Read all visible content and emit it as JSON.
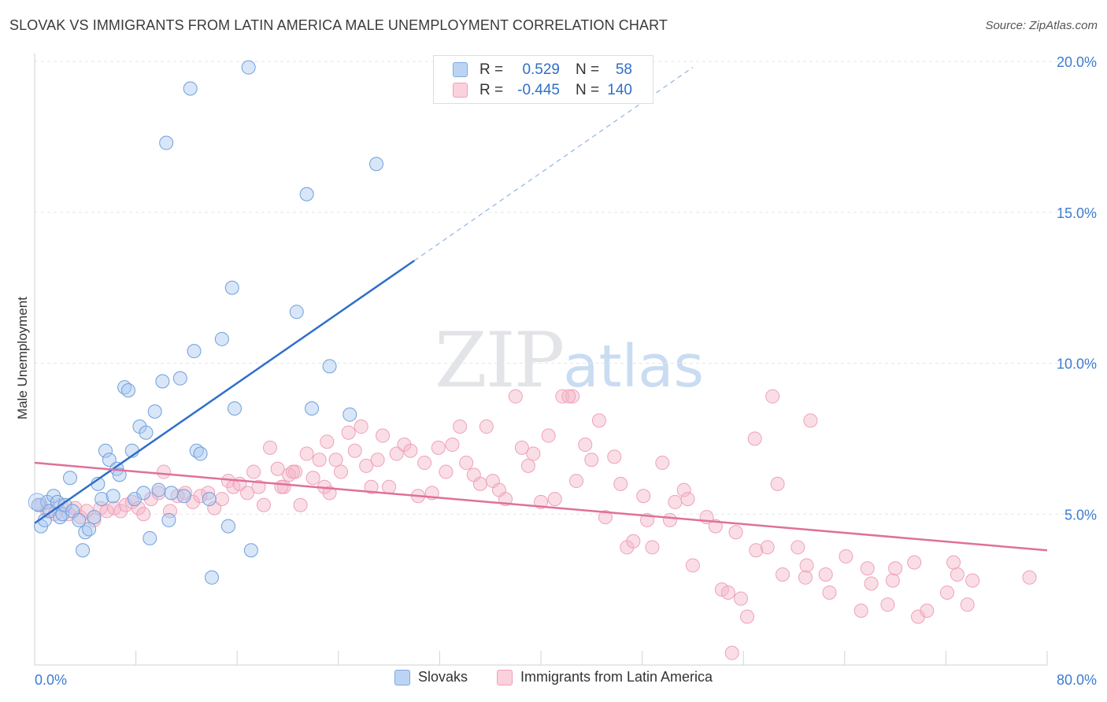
{
  "title": "SLOVAK VS IMMIGRANTS FROM LATIN AMERICA MALE UNEMPLOYMENT CORRELATION CHART",
  "source": "Source: ZipAtlas.com",
  "watermark": {
    "zip": "ZIP",
    "atlas": "atlas"
  },
  "colors": {
    "blue": "#a9c8f0",
    "blue_line": "#2f6fc9",
    "pink": "#f5b5c8",
    "pink_line": "#e0709a",
    "axis_label": "#3d7bd1"
  },
  "stats": [
    {
      "r_label": "R =",
      "r_value": "0.529",
      "n_label": "N =",
      "n_value": "58"
    },
    {
      "r_label": "R =",
      "r_value": "-0.445",
      "n_label": "N =",
      "n_value": "140"
    }
  ],
  "legend": [
    "Slovaks",
    "Immigrants from Latin America"
  ],
  "chart_data": {
    "type": "scatter",
    "ylabel": "Male Unemployment",
    "xlim": [
      0,
      80
    ],
    "ylim": [
      0,
      20
    ],
    "x_tick_labels": [
      "0.0%",
      "80.0%"
    ],
    "y_ticks": [
      5,
      10,
      15,
      20
    ],
    "y_tick_labels": [
      "5.0%",
      "10.0%",
      "15.0%",
      "20.0%"
    ],
    "grid": true,
    "series": [
      {
        "name": "Slovaks",
        "trend": {
          "x0": 0,
          "y0": 4.7,
          "x1": 30,
          "y1": 13.4,
          "dash_to_x": 52,
          "dash_to_y": 19.8
        },
        "points": [
          [
            0.3,
            5.3
          ],
          [
            0.5,
            4.6
          ],
          [
            0.8,
            4.8
          ],
          [
            1.0,
            5.4
          ],
          [
            1.2,
            5.1
          ],
          [
            1.5,
            5.6
          ],
          [
            1.8,
            5.4
          ],
          [
            2.0,
            4.9
          ],
          [
            2.2,
            5.0
          ],
          [
            2.4,
            5.3
          ],
          [
            2.8,
            6.2
          ],
          [
            3.0,
            5.1
          ],
          [
            3.5,
            4.8
          ],
          [
            3.8,
            3.8
          ],
          [
            4.0,
            4.4
          ],
          [
            4.3,
            4.5
          ],
          [
            4.7,
            4.9
          ],
          [
            5.0,
            6.0
          ],
          [
            5.3,
            5.5
          ],
          [
            5.6,
            7.1
          ],
          [
            5.9,
            6.8
          ],
          [
            6.2,
            5.6
          ],
          [
            6.5,
            6.5
          ],
          [
            6.7,
            6.3
          ],
          [
            7.1,
            9.2
          ],
          [
            7.4,
            9.1
          ],
          [
            7.7,
            7.1
          ],
          [
            7.9,
            5.5
          ],
          [
            8.3,
            7.9
          ],
          [
            8.6,
            5.7
          ],
          [
            8.8,
            7.7
          ],
          [
            9.1,
            4.2
          ],
          [
            9.5,
            8.4
          ],
          [
            9.8,
            5.8
          ],
          [
            10.1,
            9.4
          ],
          [
            10.4,
            17.3
          ],
          [
            10.8,
            5.7
          ],
          [
            10.6,
            4.8
          ],
          [
            11.5,
            9.5
          ],
          [
            11.8,
            5.6
          ],
          [
            12.3,
            19.1
          ],
          [
            12.6,
            10.4
          ],
          [
            12.8,
            7.1
          ],
          [
            13.1,
            7.0
          ],
          [
            13.8,
            5.5
          ],
          [
            14.0,
            2.9
          ],
          [
            14.8,
            10.8
          ],
          [
            15.3,
            4.6
          ],
          [
            15.6,
            12.5
          ],
          [
            15.8,
            8.5
          ],
          [
            16.9,
            19.8
          ],
          [
            17.1,
            3.8
          ],
          [
            20.7,
            11.7
          ],
          [
            21.5,
            15.6
          ],
          [
            21.9,
            8.5
          ],
          [
            23.3,
            9.9
          ],
          [
            24.9,
            8.3
          ],
          [
            27.0,
            16.6
          ]
        ]
      },
      {
        "name": "Immigrants from Latin America",
        "trend": {
          "x0": 0,
          "y0": 6.7,
          "x1": 80,
          "y1": 3.8
        },
        "points": [
          [
            0.5,
            5.3
          ],
          [
            1.0,
            5.1
          ],
          [
            1.6,
            5.0
          ],
          [
            2.1,
            5.3
          ],
          [
            2.7,
            5.0
          ],
          [
            3.2,
            5.2
          ],
          [
            3.6,
            4.9
          ],
          [
            4.1,
            5.1
          ],
          [
            4.7,
            4.8
          ],
          [
            5.2,
            5.2
          ],
          [
            5.7,
            5.1
          ],
          [
            6.3,
            5.2
          ],
          [
            6.8,
            5.1
          ],
          [
            7.2,
            5.3
          ],
          [
            7.7,
            5.4
          ],
          [
            8.2,
            5.2
          ],
          [
            8.6,
            5.0
          ],
          [
            9.2,
            5.5
          ],
          [
            9.8,
            5.7
          ],
          [
            10.2,
            6.4
          ],
          [
            10.7,
            5.1
          ],
          [
            11.3,
            5.6
          ],
          [
            11.9,
            5.7
          ],
          [
            12.5,
            5.4
          ],
          [
            13.1,
            5.6
          ],
          [
            13.7,
            5.7
          ],
          [
            14.2,
            5.2
          ],
          [
            14.8,
            5.5
          ],
          [
            15.3,
            6.1
          ],
          [
            15.7,
            5.9
          ],
          [
            16.2,
            6.0
          ],
          [
            16.8,
            5.7
          ],
          [
            17.3,
            6.4
          ],
          [
            17.7,
            5.9
          ],
          [
            18.1,
            5.3
          ],
          [
            18.6,
            7.2
          ],
          [
            19.2,
            6.5
          ],
          [
            19.7,
            5.9
          ],
          [
            20.1,
            6.3
          ],
          [
            20.6,
            6.4
          ],
          [
            21.0,
            5.3
          ],
          [
            21.5,
            7.0
          ],
          [
            22.0,
            6.2
          ],
          [
            22.5,
            6.8
          ],
          [
            22.9,
            5.9
          ],
          [
            23.3,
            5.7
          ],
          [
            23.8,
            6.8
          ],
          [
            24.2,
            6.4
          ],
          [
            24.8,
            7.7
          ],
          [
            25.3,
            7.1
          ],
          [
            25.8,
            7.9
          ],
          [
            26.2,
            6.6
          ],
          [
            26.6,
            5.9
          ],
          [
            27.1,
            6.8
          ],
          [
            27.5,
            7.6
          ],
          [
            28.0,
            5.9
          ],
          [
            28.6,
            7.0
          ],
          [
            29.2,
            7.3
          ],
          [
            29.7,
            7.1
          ],
          [
            30.3,
            5.6
          ],
          [
            30.8,
            6.7
          ],
          [
            31.4,
            5.7
          ],
          [
            31.9,
            7.2
          ],
          [
            32.5,
            6.4
          ],
          [
            33.0,
            7.3
          ],
          [
            33.6,
            7.9
          ],
          [
            34.1,
            6.7
          ],
          [
            34.7,
            6.3
          ],
          [
            35.2,
            6.0
          ],
          [
            35.7,
            7.9
          ],
          [
            36.2,
            6.1
          ],
          [
            36.7,
            5.8
          ],
          [
            37.2,
            5.5
          ],
          [
            38.0,
            8.9
          ],
          [
            38.5,
            7.2
          ],
          [
            39.0,
            6.6
          ],
          [
            39.4,
            7.0
          ],
          [
            40.0,
            5.4
          ],
          [
            40.6,
            7.6
          ],
          [
            41.1,
            5.5
          ],
          [
            41.7,
            8.9
          ],
          [
            42.5,
            8.9
          ],
          [
            42.8,
            6.1
          ],
          [
            43.5,
            7.3
          ],
          [
            44.0,
            6.8
          ],
          [
            44.6,
            8.1
          ],
          [
            45.1,
            4.9
          ],
          [
            45.8,
            6.9
          ],
          [
            46.3,
            6.0
          ],
          [
            46.8,
            3.9
          ],
          [
            47.3,
            4.1
          ],
          [
            48.1,
            5.6
          ],
          [
            48.4,
            4.8
          ],
          [
            48.8,
            3.9
          ],
          [
            49.6,
            6.7
          ],
          [
            50.2,
            4.8
          ],
          [
            50.6,
            5.4
          ],
          [
            51.3,
            5.8
          ],
          [
            51.6,
            5.5
          ],
          [
            52.0,
            3.3
          ],
          [
            53.1,
            4.9
          ],
          [
            53.8,
            4.6
          ],
          [
            54.3,
            2.5
          ],
          [
            54.8,
            2.4
          ],
          [
            55.4,
            4.4
          ],
          [
            55.8,
            2.2
          ],
          [
            56.3,
            1.6
          ],
          [
            56.9,
            7.5
          ],
          [
            57.0,
            3.8
          ],
          [
            57.9,
            3.9
          ],
          [
            58.7,
            6.0
          ],
          [
            59.1,
            3.0
          ],
          [
            60.3,
            3.9
          ],
          [
            60.9,
            2.9
          ],
          [
            61.0,
            3.3
          ],
          [
            62.5,
            3.0
          ],
          [
            62.8,
            2.4
          ],
          [
            64.1,
            3.6
          ],
          [
            65.3,
            1.8
          ],
          [
            65.8,
            3.2
          ],
          [
            66.1,
            2.7
          ],
          [
            67.4,
            2.0
          ],
          [
            67.8,
            2.8
          ],
          [
            68.0,
            3.2
          ],
          [
            69.5,
            3.4
          ],
          [
            69.8,
            1.6
          ],
          [
            70.5,
            1.8
          ],
          [
            72.1,
            2.4
          ],
          [
            72.6,
            3.4
          ],
          [
            72.9,
            3.0
          ],
          [
            73.7,
            2.0
          ],
          [
            74.1,
            2.8
          ],
          [
            78.6,
            2.9
          ],
          [
            58.3,
            8.9
          ],
          [
            61.3,
            8.1
          ],
          [
            42.2,
            8.9
          ],
          [
            55.1,
            0.4
          ],
          [
            19.5,
            5.9
          ],
          [
            20.4,
            6.4
          ],
          [
            23.1,
            7.4
          ]
        ]
      }
    ]
  }
}
